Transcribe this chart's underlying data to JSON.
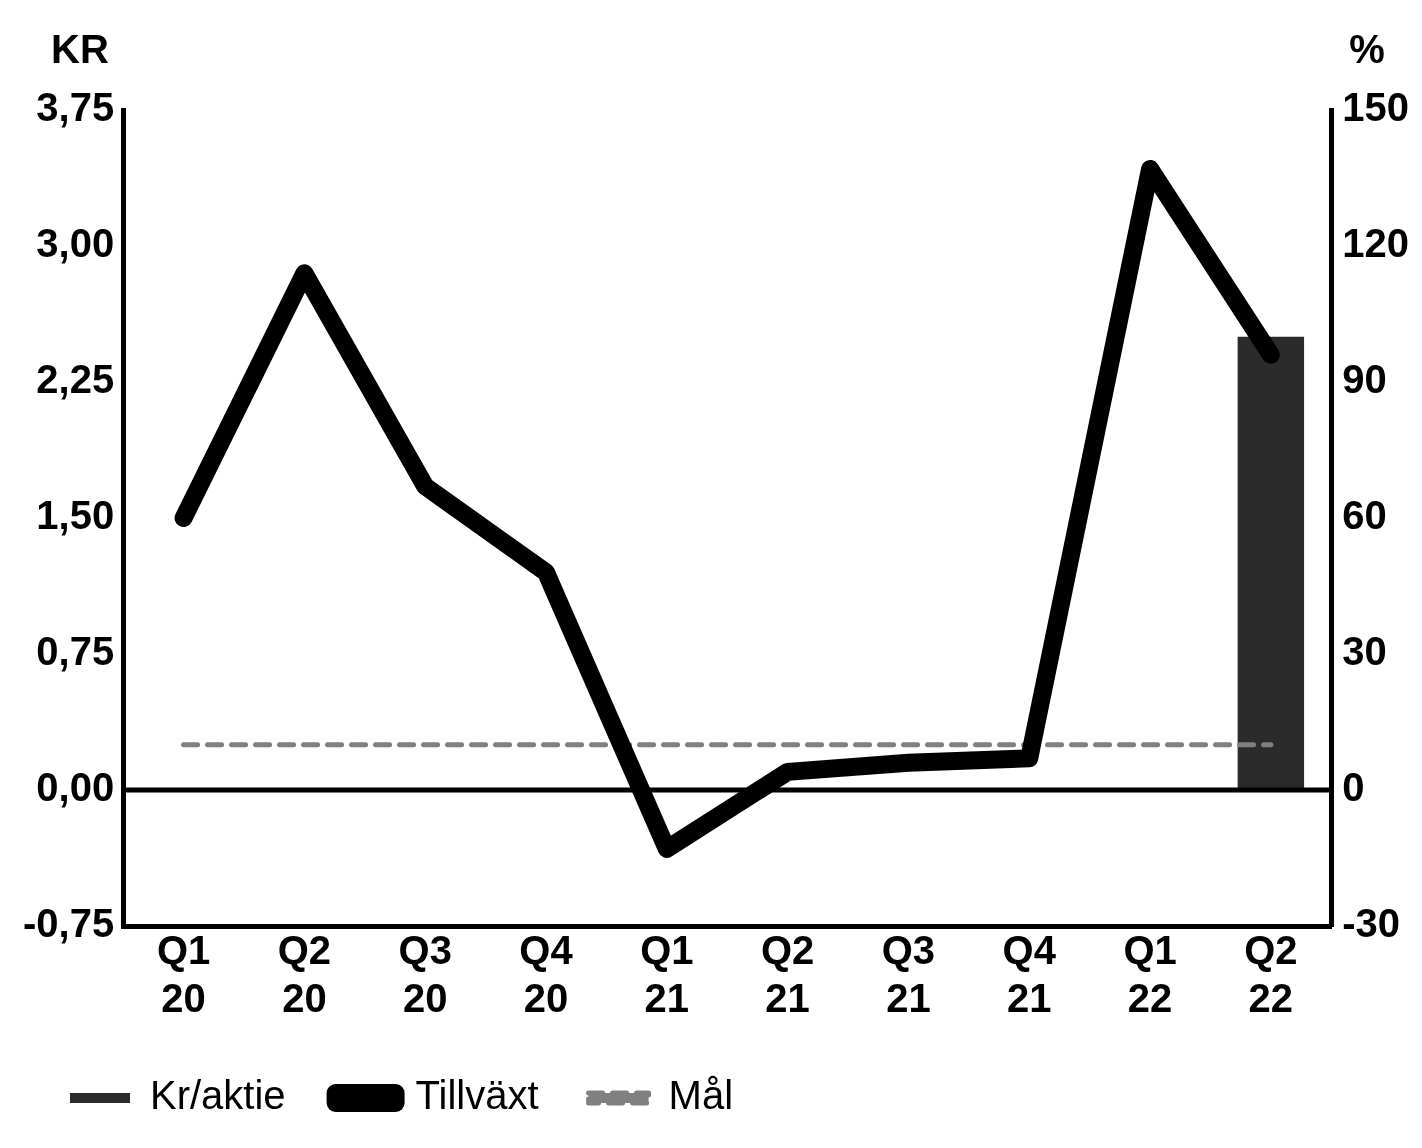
{
  "chart_data": {
    "type": "bar",
    "ylabel": "KR",
    "y2label": "%",
    "categories": [
      "Q1 20",
      "Q2 20",
      "Q3 20",
      "Q4 20",
      "Q1 21",
      "Q2 21",
      "Q3 21",
      "Q4 21",
      "Q1 22",
      "Q2 22"
    ],
    "series": [
      {
        "name": "Kr/aktie",
        "color": "#2b2b2b",
        "values": [
          null,
          null,
          null,
          null,
          null,
          null,
          null,
          null,
          null,
          2.5
        ]
      },
      {
        "name": "Tillväxt",
        "type": "line",
        "axis": "y2",
        "color": "#000000",
        "marker": "none",
        "line_style": "solid",
        "values": [
          60,
          114,
          67,
          48,
          -13,
          4,
          6,
          7,
          137,
          96
        ]
      },
      {
        "name": "Mål",
        "type": "line",
        "axis": "y2",
        "color": "#808080",
        "marker": "none",
        "line_style": "dashed",
        "values": [
          10,
          10,
          10,
          10,
          10,
          10,
          10,
          10,
          10,
          10
        ]
      }
    ],
    "ylim": [
      -0.75,
      3.75
    ],
    "yticks": [
      {
        "value": -0.75,
        "label": "-0,75"
      },
      {
        "value": 0,
        "label": "0,00"
      },
      {
        "value": 0.75,
        "label": "0,75"
      },
      {
        "value": 1.5,
        "label": "1,50"
      },
      {
        "value": 2.25,
        "label": "2,25"
      },
      {
        "value": 3,
        "label": "3,00"
      },
      {
        "value": 3.75,
        "label": "3,75"
      }
    ],
    "y2lim": [
      -30,
      150
    ],
    "y2ticks": [
      -30,
      0,
      30,
      60,
      90,
      120,
      150
    ],
    "ref_lines": [
      {
        "axis": "y",
        "value": 0,
        "color": "#000000"
      }
    ],
    "grid": false,
    "legend": "bottom left"
  }
}
